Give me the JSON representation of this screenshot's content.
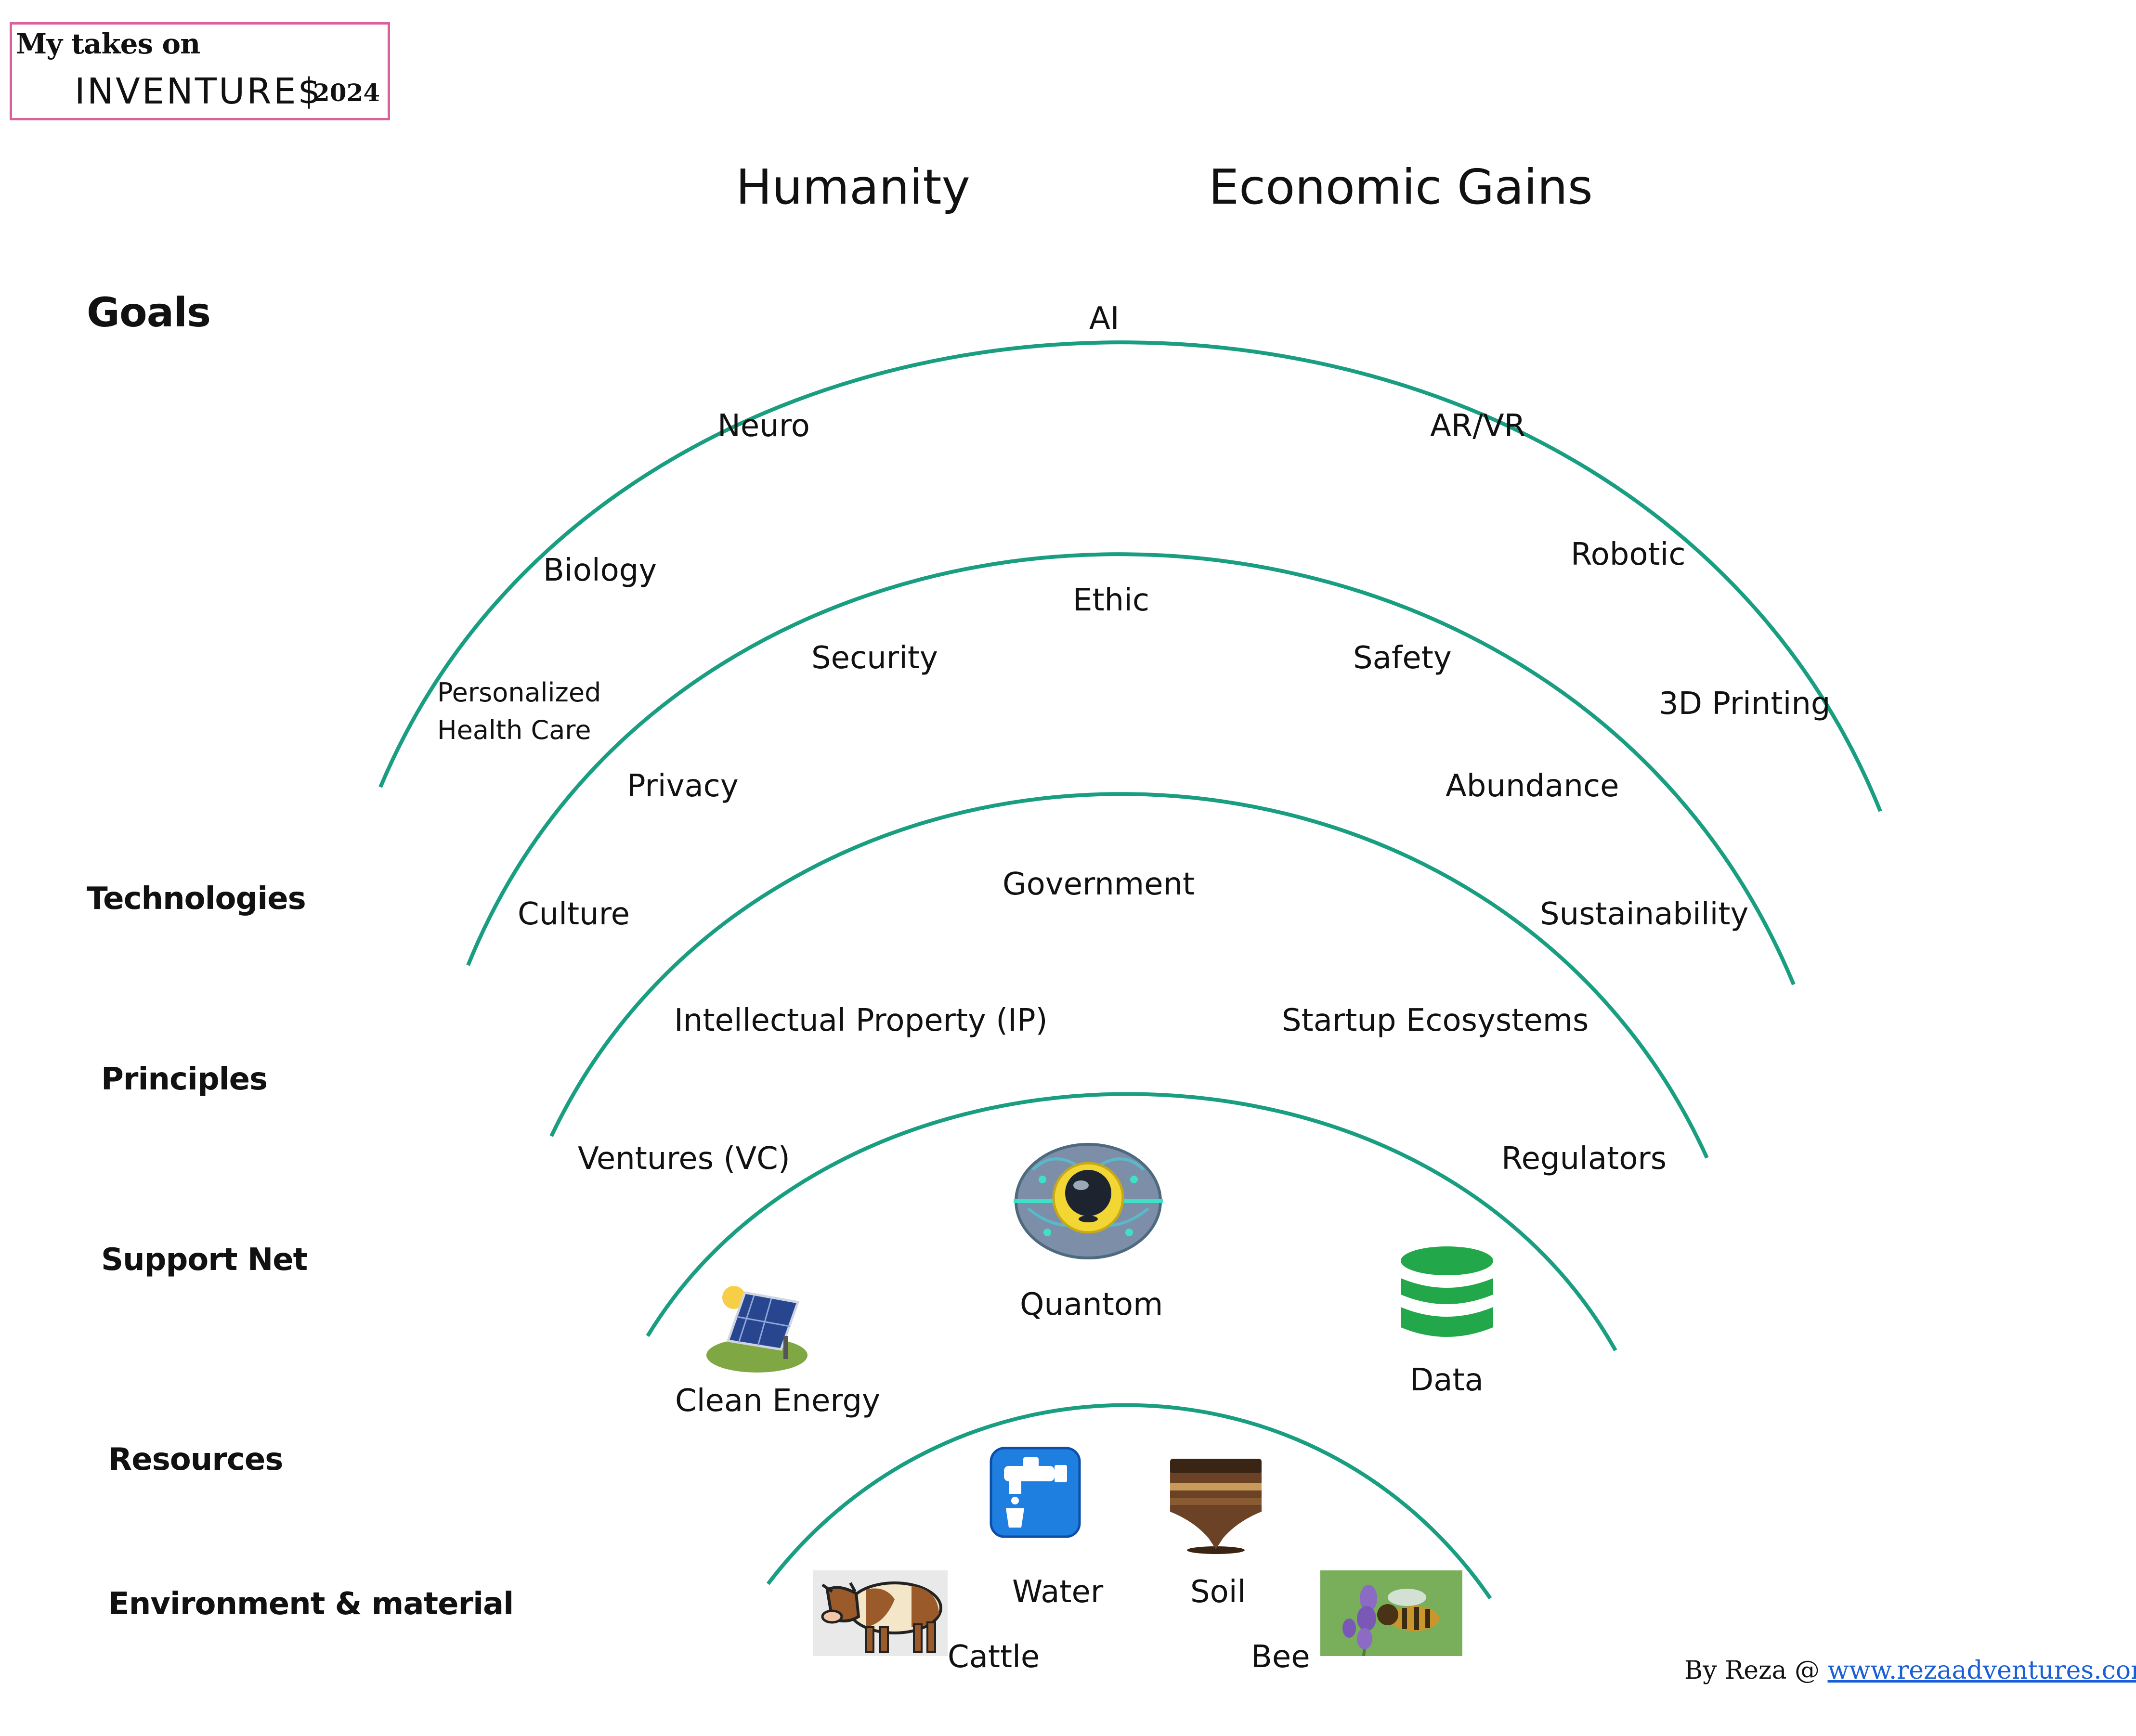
{
  "header": {
    "prefix": "My takes on",
    "brand": "INVENTURE$",
    "year": "2024"
  },
  "top_labels": {
    "left": "Humanity",
    "right": "Economic Gains"
  },
  "layers": {
    "goals": "Goals",
    "technologies": "Technologies",
    "principles": "Principles",
    "support_net": "Support Net",
    "resources": "Resources",
    "environment": "Environment & material"
  },
  "technologies": {
    "ai": "AI",
    "neuro": "Neuro",
    "arvr": "AR/VR",
    "biology": "Biology",
    "robotic": "Robotic",
    "health_line1": "Personalized",
    "health_line2": "Health Care",
    "printing": "3D Printing"
  },
  "principles": {
    "ethic": "Ethic",
    "security": "Security",
    "safety": "Safety",
    "privacy": "Privacy",
    "abundance": "Abundance",
    "culture": "Culture",
    "sustainability": "Sustainability"
  },
  "support_net": {
    "government": "Government",
    "ip": "Intellectual Property (IP)",
    "startup": "Startup Ecosystems",
    "ventures": "Ventures (VC)",
    "regulators": "Regulators"
  },
  "resources": {
    "quantum": "Quantom",
    "clean_energy": "Clean Energy",
    "data": "Data"
  },
  "environment": {
    "water": "Water",
    "soil": "Soil",
    "cattle": "Cattle",
    "bee": "Bee"
  },
  "icons": {
    "quantum": "quantum-brain-icon",
    "solar": "solar-panel-icon",
    "data": "database-icon",
    "water": "water-tap-icon",
    "soil": "soil-icon",
    "cattle": "cow-icon",
    "bee": "bee-on-lavender-icon"
  },
  "colors": {
    "arc": "#1a9e82",
    "header_border": "#d9629b",
    "link": "#1a5fd6"
  },
  "footer": {
    "by": "By Reza @",
    "link": "www.rezaadventures.com/"
  }
}
